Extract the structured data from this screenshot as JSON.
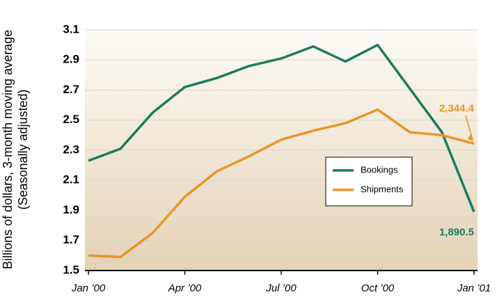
{
  "chart_data": {
    "type": "line",
    "y_label": [
      "Billions of dollars, 3-month moving average",
      "(Seasonally adjusted)"
    ],
    "categories": [
      "Jan ’00",
      null,
      null,
      "Apr ’00",
      null,
      null,
      "Jul ’00",
      null,
      null,
      "Oct ’00",
      null,
      null,
      "Jan ’01"
    ],
    "series": [
      {
        "name": "Bookings",
        "color": "#1b7b5f",
        "values": [
          2.23,
          2.31,
          2.55,
          2.72,
          2.78,
          2.86,
          2.91,
          2.99,
          2.89,
          3.0,
          2.71,
          2.42,
          1.8905
        ],
        "value_labels": [
          null,
          null,
          null,
          null,
          null,
          null,
          null,
          null,
          null,
          null,
          null,
          null,
          "1,890.5"
        ]
      },
      {
        "name": "Shipments",
        "color": "#e8952a",
        "values": [
          1.6,
          1.59,
          1.75,
          1.99,
          2.16,
          2.26,
          2.37,
          2.43,
          2.48,
          2.57,
          2.42,
          2.4,
          2.3444
        ],
        "value_labels": [
          null,
          null,
          null,
          null,
          null,
          null,
          null,
          null,
          null,
          null,
          null,
          null,
          "2,344.4"
        ]
      }
    ],
    "ylim": [
      1.5,
      3.1
    ],
    "yticks": [
      1.5,
      1.7,
      1.9,
      2.1,
      2.3,
      2.5,
      2.7,
      2.9,
      3.1
    ],
    "grid": true,
    "legend": "center right"
  }
}
